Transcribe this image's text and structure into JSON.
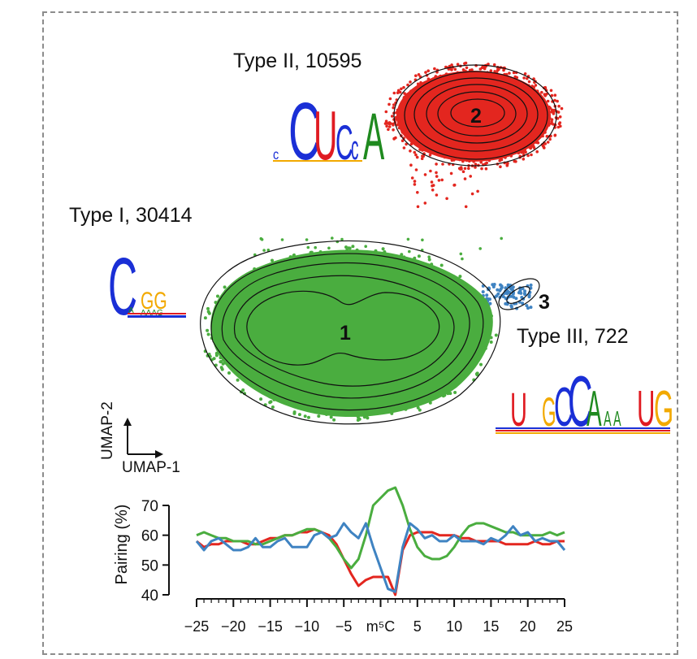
{
  "colors": {
    "type1": "#4aad3f",
    "type2": "#e3261f",
    "type3": "#3f83c2",
    "logo_C": "#1a2fd6",
    "logo_U": "#e01b22",
    "logo_G": "#f2a900",
    "logo_A": "#1f8a1f"
  },
  "clusters": [
    {
      "label": "Type I, 30414",
      "number": "1",
      "color_key": "type1",
      "motif": "C_GG"
    },
    {
      "label": "Type II, 10595",
      "number": "2",
      "color_key": "type2",
      "motif": "CUCcA"
    },
    {
      "label": "Type III, 722",
      "number": "3",
      "color_key": "type3",
      "motif": "U_GCCAAAUG"
    }
  ],
  "umap_axes": {
    "x": "UMAP-1",
    "y": "UMAP-2"
  },
  "chart_data": {
    "type": "line",
    "ylabel": "Pairing (%)",
    "xlabel": "",
    "ylim": [
      40,
      70
    ],
    "xlim": [
      -25,
      25
    ],
    "yticks": [
      40,
      50,
      60,
      70
    ],
    "xticks": [
      "−25",
      "−20",
      "−15",
      "−10",
      "−5",
      "m⁵C",
      "5",
      "10",
      "15",
      "20",
      "25"
    ],
    "x": [
      -25,
      -24,
      -23,
      -22,
      -21,
      -20,
      -19,
      -18,
      -17,
      -16,
      -15,
      -14,
      -13,
      -12,
      -11,
      -10,
      -9,
      -8,
      -7,
      -6,
      -5,
      -4,
      -3,
      -2,
      -1,
      1,
      2,
      3,
      4,
      5,
      6,
      7,
      8,
      9,
      10,
      11,
      12,
      13,
      14,
      15,
      16,
      17,
      18,
      19,
      20,
      21,
      22,
      23,
      24,
      25
    ],
    "series": [
      {
        "color_key": "type2",
        "values": [
          58,
          56,
          57,
          57,
          58,
          58,
          58,
          57,
          57,
          58,
          59,
          59,
          60,
          60,
          61,
          61,
          62,
          61,
          60,
          57,
          52,
          47,
          43,
          45,
          46,
          46,
          40,
          55,
          60,
          61,
          61,
          61,
          60,
          60,
          60,
          59,
          59,
          58,
          58,
          58,
          58,
          57,
          57,
          57,
          57,
          58,
          57,
          57,
          58,
          58
        ]
      },
      {
        "color_key": "type1",
        "values": [
          60,
          61,
          60,
          59,
          59,
          58,
          58,
          58,
          57,
          57,
          58,
          59,
          60,
          60,
          61,
          62,
          62,
          61,
          59,
          56,
          52,
          49,
          52,
          60,
          70,
          75,
          76,
          70,
          62,
          56,
          53,
          52,
          52,
          53,
          56,
          60,
          63,
          64,
          64,
          63,
          62,
          61,
          61,
          60,
          60,
          60,
          60,
          61,
          60,
          61
        ]
      },
      {
        "color_key": "type3",
        "values": [
          58,
          55,
          58,
          59,
          57,
          55,
          55,
          56,
          59,
          56,
          56,
          58,
          59,
          56,
          56,
          56,
          60,
          61,
          59,
          60,
          64,
          61,
          59,
          64,
          56,
          42,
          41,
          56,
          64,
          62,
          59,
          60,
          58,
          58,
          60,
          58,
          58,
          58,
          57,
          59,
          58,
          60,
          63,
          60,
          61,
          58,
          59,
          58,
          58,
          55
        ]
      }
    ]
  }
}
